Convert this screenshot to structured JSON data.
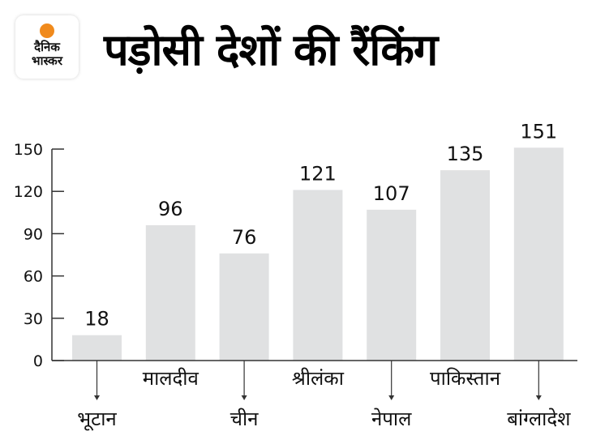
{
  "brand": {
    "logo_line1": "दैनिक",
    "logo_line2": "भास्कर",
    "accent": "#f08a1c"
  },
  "chart_data": {
    "type": "bar",
    "title": "पड़ोसी देशों की रैंकिंग",
    "categories": [
      "भूटान",
      "मालदीव",
      "चीन",
      "श्रीलंका",
      "नेपाल",
      "पाकिस्तान",
      "बांग्लादेश"
    ],
    "values": [
      18,
      96,
      76,
      121,
      107,
      135,
      151
    ],
    "yticks": [
      0,
      30,
      60,
      90,
      120,
      150
    ],
    "ylim": [
      0,
      150
    ],
    "xlabel": "",
    "ylabel": "",
    "grid": false,
    "bar_color": "#e0e1e2"
  }
}
